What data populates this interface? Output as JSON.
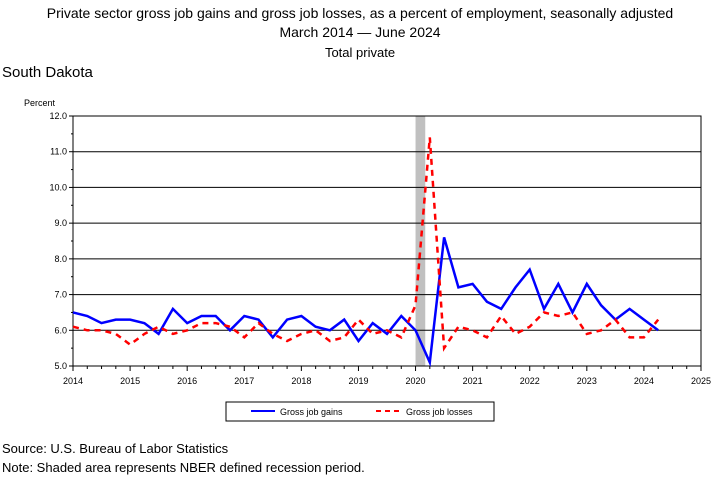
{
  "header": {
    "title": "Private sector gross job gains and gross job losses, as a percent of employment, seasonally adjusted",
    "period_start": "March 2014",
    "period_end": "June 2024",
    "subtitle": "Total private",
    "region": "South Dakota"
  },
  "footer": {
    "source": "Source: U.S. Bureau of Labor Statistics",
    "note": "Note: Shaded area represents NBER defined recession period."
  },
  "colors": {
    "gains": "#0000ff",
    "losses": "#ff0000",
    "recession": "#c0c0c0"
  },
  "chart_data": {
    "type": "line",
    "title": "Private sector gross job gains and gross job losses, as a percent of employment, seasonally adjusted",
    "subtitle": "Total private",
    "ylabel": "Percent",
    "xlim": [
      2014,
      2025
    ],
    "ylim": [
      5.0,
      12.0
    ],
    "x_ticks": [
      "2014",
      "2015",
      "2016",
      "2017",
      "2018",
      "2019",
      "2020",
      "2021",
      "2022",
      "2023",
      "2024",
      "2025"
    ],
    "y_ticks": [
      "5.0",
      "6.0",
      "7.0",
      "8.0",
      "9.0",
      "10.0",
      "11.0",
      "12.0"
    ],
    "grid": "horizontal",
    "legend_position": "bottom",
    "recession": {
      "start": 2020.0,
      "end": 2020.17
    },
    "x": [
      2014.0,
      2014.25,
      2014.5,
      2014.75,
      2015.0,
      2015.25,
      2015.5,
      2015.75,
      2016.0,
      2016.25,
      2016.5,
      2016.75,
      2017.0,
      2017.25,
      2017.5,
      2017.75,
      2018.0,
      2018.25,
      2018.5,
      2018.75,
      2019.0,
      2019.25,
      2019.5,
      2019.75,
      2020.0,
      2020.25,
      2020.5,
      2020.75,
      2021.0,
      2021.25,
      2021.5,
      2021.75,
      2022.0,
      2022.25,
      2022.5,
      2022.75,
      2023.0,
      2023.25,
      2023.5,
      2023.75,
      2024.0,
      2024.25
    ],
    "series": [
      {
        "name": "Gross job gains",
        "style": "solid",
        "values": [
          6.5,
          6.4,
          6.2,
          6.3,
          6.3,
          6.2,
          5.9,
          6.6,
          6.2,
          6.4,
          6.4,
          6.0,
          6.4,
          6.3,
          5.8,
          6.3,
          6.4,
          6.1,
          6.0,
          6.3,
          5.7,
          6.2,
          5.9,
          6.4,
          6.0,
          5.1,
          8.6,
          7.2,
          7.3,
          6.8,
          6.6,
          7.2,
          7.7,
          6.6,
          7.3,
          6.5,
          7.3,
          6.7,
          6.3,
          6.6,
          6.3,
          6.0
        ]
      },
      {
        "name": "Gross job losses",
        "style": "dashed",
        "values": [
          6.1,
          6.0,
          6.0,
          5.9,
          5.6,
          5.9,
          6.1,
          5.9,
          6.0,
          6.2,
          6.2,
          6.1,
          5.8,
          6.2,
          5.9,
          5.7,
          5.9,
          6.0,
          5.7,
          5.8,
          6.3,
          5.9,
          6.0,
          5.8,
          6.7,
          11.4,
          5.5,
          6.1,
          6.0,
          5.8,
          6.4,
          5.9,
          6.1,
          6.5,
          6.4,
          6.5,
          5.9,
          6.0,
          6.3,
          5.8,
          5.8,
          6.3
        ]
      }
    ]
  }
}
